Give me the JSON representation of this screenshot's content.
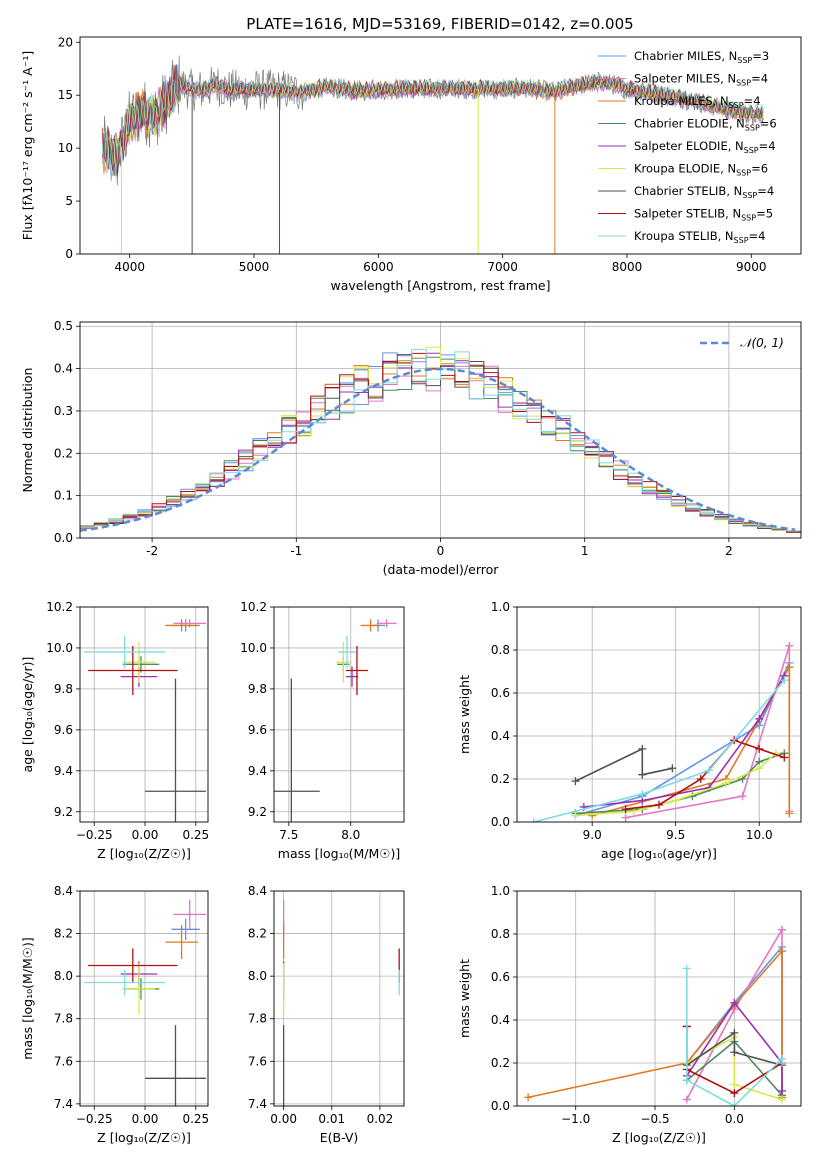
{
  "figure_title": "PLATE=1616, MJD=53169, FIBERID=0142, z=0.005",
  "models": [
    {
      "name": "Chabrier MILES",
      "nssp": "3",
      "color": "#6495ed"
    },
    {
      "name": "Salpeter MILES",
      "nssp": "4",
      "color": "#e377c2"
    },
    {
      "name": "Kroupa MILES",
      "nssp": "4",
      "color": "#e07a1f"
    },
    {
      "name": "Chabrier ELODIE",
      "nssp": "6",
      "color": "#4c8c5c"
    },
    {
      "name": "Salpeter ELODIE",
      "nssp": "4",
      "color": "#9b30b0"
    },
    {
      "name": "Kroupa ELODIE",
      "nssp": "6",
      "color": "#d8e84a"
    },
    {
      "name": "Chabrier STELIB",
      "nssp": "4",
      "color": "#505050"
    },
    {
      "name": "Salpeter STELIB",
      "nssp": "5",
      "color": "#b01010"
    },
    {
      "name": "Kroupa STELIB",
      "nssp": "4",
      "color": "#7fdbe0"
    }
  ],
  "chart_data": [
    {
      "id": "spectrum",
      "type": "line",
      "xlabel": "wavelength [Angstrom, rest frame]",
      "ylabel": "Flux [fλ10⁻¹⁷ erg cm⁻² s⁻¹ A⁻¹]",
      "xlim": [
        3600,
        9400
      ],
      "ylim": [
        0,
        20.5
      ],
      "xticks": [
        4000,
        5000,
        6000,
        7000,
        8000,
        9000
      ],
      "yticks": [
        0,
        5,
        10,
        15,
        20
      ],
      "grid": false,
      "legend": "right",
      "continuum": {
        "x": [
          3780,
          3900,
          4000,
          4100,
          4200,
          4300,
          4400,
          4500,
          4600,
          4700,
          4800,
          4900,
          5000,
          5200,
          5400,
          5600,
          5800,
          6000,
          6200,
          6400,
          6600,
          6800,
          7000,
          7200,
          7400,
          7600,
          7800,
          8000,
          8200,
          8400,
          8600,
          8800,
          9000,
          9100
        ],
        "y": [
          10.0,
          9.0,
          12.5,
          13.5,
          13.0,
          14.5,
          16.0,
          15.5,
          15.5,
          16.0,
          15.5,
          15.5,
          15.5,
          15.5,
          15.3,
          15.8,
          15.4,
          15.5,
          15.6,
          15.6,
          15.6,
          15.6,
          15.6,
          15.7,
          15.3,
          15.9,
          16.3,
          15.6,
          15.2,
          14.8,
          14.3,
          13.6,
          13.2,
          13.3
        ]
      },
      "absorption_lines": [
        {
          "x": 3933,
          "y": 0,
          "model": "Kroupa ELODIE"
        },
        {
          "x": 4502,
          "y": 0,
          "model": "Chabrier STELIB"
        },
        {
          "x": 5205,
          "y": 0,
          "model": "Chabrier STELIB"
        },
        {
          "x": 6803,
          "y": 0,
          "model": "Kroupa ELODIE"
        },
        {
          "x": 7420,
          "y": 0,
          "model": "Kroupa MILES"
        }
      ]
    },
    {
      "id": "residual-histogram",
      "type": "histogram",
      "xlabel": "(data-model)/error",
      "ylabel": "Normed distribution",
      "xlim": [
        -2.5,
        2.5
      ],
      "ylim": [
        0,
        0.51
      ],
      "xticks": [
        -2,
        -1,
        0,
        1,
        2
      ],
      "yticks": [
        0.0,
        0.1,
        0.2,
        0.3,
        0.4,
        0.5
      ],
      "grid": true,
      "legend": "top-right",
      "reference_curve": {
        "name": "𝒩(0, 1)",
        "mean": 0,
        "sd": 1,
        "color": "#5a8ad6"
      },
      "bin_width": 0.1
    },
    {
      "id": "age-vs-Z",
      "type": "errorbar",
      "xlabel": "Z [log₁₀(Z/Z☉)]",
      "ylabel": "age [log₁₀(age/yr)]",
      "xlim": [
        -0.32,
        0.31
      ],
      "ylim": [
        9.15,
        10.2
      ],
      "xticks": [
        -0.25,
        0.0,
        0.25
      ],
      "xticklabels": [
        "−0.25",
        "0.00",
        "0.25"
      ],
      "yticks": [
        9.2,
        9.4,
        9.6,
        9.8,
        10.0,
        10.2
      ],
      "grid": true,
      "points": [
        {
          "model": "Chabrier MILES",
          "x": 0.2,
          "xerr": 0.07,
          "y": 10.11,
          "yerr": 0.03
        },
        {
          "model": "Salpeter MILES",
          "x": 0.22,
          "xerr": 0.08,
          "y": 10.12,
          "yerr": 0.02
        },
        {
          "model": "Kroupa MILES",
          "x": 0.18,
          "xerr": 0.08,
          "y": 10.11,
          "yerr": 0.03
        },
        {
          "model": "Chabrier ELODIE",
          "x": -0.02,
          "xerr": 0.09,
          "y": 9.92,
          "yerr": 0.04
        },
        {
          "model": "Salpeter ELODIE",
          "x": -0.03,
          "xerr": 0.09,
          "y": 9.86,
          "yerr": 0.05
        },
        {
          "model": "Kroupa ELODIE",
          "x": -0.03,
          "xerr": 0.08,
          "y": 9.93,
          "yerr": 0.1
        },
        {
          "model": "Chabrier STELIB",
          "x": 0.15,
          "xerr": 0.15,
          "y": 9.3,
          "yerr": 0.55
        },
        {
          "model": "Salpeter STELIB",
          "x": -0.06,
          "xerr": 0.22,
          "y": 9.89,
          "yerr": 0.12
        },
        {
          "model": "Kroupa STELIB",
          "x": -0.1,
          "xerr": 0.2,
          "y": 9.98,
          "yerr": 0.08
        }
      ]
    },
    {
      "id": "age-vs-mass",
      "type": "errorbar",
      "xlabel": "mass [log₁₀(M/M☉)]",
      "xlim": [
        7.38,
        8.43
      ],
      "ylim": [
        9.15,
        10.2
      ],
      "xticks": [
        7.5,
        8.0
      ],
      "xticklabels": [
        "7.5",
        "8.0"
      ],
      "yticks": [
        9.2,
        9.4,
        9.6,
        9.8,
        10.0,
        10.2
      ],
      "grid": true,
      "points": [
        {
          "model": "Chabrier MILES",
          "x": 8.22,
          "xerr": 0.06,
          "y": 10.11,
          "yerr": 0.03
        },
        {
          "model": "Salpeter MILES",
          "x": 8.29,
          "xerr": 0.08,
          "y": 10.12,
          "yerr": 0.02
        },
        {
          "model": "Kroupa MILES",
          "x": 8.16,
          "xerr": 0.08,
          "y": 10.11,
          "yerr": 0.03
        },
        {
          "model": "Chabrier ELODIE",
          "x": 7.94,
          "xerr": 0.05,
          "y": 9.92,
          "yerr": 0.04
        },
        {
          "model": "Salpeter ELODIE",
          "x": 8.01,
          "xerr": 0.05,
          "y": 9.86,
          "yerr": 0.05
        },
        {
          "model": "Kroupa ELODIE",
          "x": 7.94,
          "xerr": 0.06,
          "y": 9.93,
          "yerr": 0.1
        },
        {
          "model": "Chabrier STELIB",
          "x": 7.52,
          "xerr": 0.23,
          "y": 9.3,
          "yerr": 0.55
        },
        {
          "model": "Salpeter STELIB",
          "x": 8.05,
          "xerr": 0.09,
          "y": 9.89,
          "yerr": 0.12
        },
        {
          "model": "Kroupa STELIB",
          "x": 7.97,
          "xerr": 0.07,
          "y": 9.98,
          "yerr": 0.08
        }
      ]
    },
    {
      "id": "mass-weight-vs-age",
      "type": "line",
      "xlabel": "age [log₁₀(age/yr)]",
      "ylabel": "mass weight",
      "xlim": [
        8.55,
        10.25
      ],
      "ylim": [
        0.0,
        1.0
      ],
      "xticks": [
        9.0,
        9.5,
        10.0
      ],
      "xticklabels": [
        "9.0",
        "9.5",
        "10.0"
      ],
      "yticks": [
        0.0,
        0.2,
        0.4,
        0.6,
        0.8,
        1.0
      ],
      "grid": true,
      "series": [
        {
          "model": "Chabrier MILES",
          "x": [
            8.9,
            9.3,
            10.0,
            10.18
          ],
          "y": [
            0.03,
            0.12,
            0.45,
            0.74
          ]
        },
        {
          "model": "Salpeter MILES",
          "x": [
            9.2,
            9.9,
            10.18,
            10.18
          ],
          "y": [
            0.02,
            0.12,
            0.82,
            0.05
          ]
        },
        {
          "model": "Kroupa MILES",
          "x": [
            9.0,
            9.8,
            10.18,
            10.18
          ],
          "y": [
            0.03,
            0.2,
            0.72,
            0.04
          ]
        },
        {
          "model": "Chabrier ELODIE",
          "x": [
            8.9,
            9.3,
            9.6,
            9.9,
            10.0,
            10.15
          ],
          "y": [
            0.04,
            0.06,
            0.12,
            0.2,
            0.28,
            0.32
          ]
        },
        {
          "model": "Salpeter ELODIE",
          "x": [
            8.95,
            9.3,
            9.7,
            10.0,
            10.15
          ],
          "y": [
            0.07,
            0.1,
            0.16,
            0.48,
            0.68
          ]
        },
        {
          "model": "Kroupa ELODIE",
          "x": [
            8.9,
            9.25,
            9.5,
            9.8,
            10.0,
            10.1
          ],
          "y": [
            0.03,
            0.05,
            0.1,
            0.18,
            0.25,
            0.32
          ]
        },
        {
          "model": "Chabrier STELIB",
          "x": [
            8.9,
            9.3,
            9.3,
            9.48
          ],
          "y": [
            0.19,
            0.34,
            0.22,
            0.25
          ]
        },
        {
          "model": "Salpeter STELIB",
          "x": [
            9.2,
            9.4,
            9.65,
            9.85,
            10.0,
            10.15
          ],
          "y": [
            0.06,
            0.08,
            0.2,
            0.38,
            0.34,
            0.3
          ]
        },
        {
          "model": "Kroupa STELIB",
          "x": [
            8.65,
            9.3,
            9.7,
            10.15
          ],
          "y": [
            0.0,
            0.13,
            0.24,
            0.66
          ]
        }
      ]
    },
    {
      "id": "mass-vs-Z",
      "type": "errorbar",
      "xlabel": "Z [log₁₀(Z/Z☉)]",
      "ylabel": "mass [log₁₀(M/M☉)]",
      "xlim": [
        -0.32,
        0.31
      ],
      "ylim": [
        7.39,
        8.4
      ],
      "xticks": [
        -0.25,
        0.0,
        0.25
      ],
      "xticklabels": [
        "−0.25",
        "0.00",
        "0.25"
      ],
      "yticks": [
        7.4,
        7.6,
        7.8,
        8.0,
        8.2,
        8.4
      ],
      "grid": true,
      "points": [
        {
          "model": "Chabrier MILES",
          "x": 0.2,
          "xerr": 0.07,
          "y": 8.22,
          "yerr": 0.05
        },
        {
          "model": "Salpeter MILES",
          "x": 0.22,
          "xerr": 0.08,
          "y": 8.29,
          "yerr": 0.07
        },
        {
          "model": "Kroupa MILES",
          "x": 0.18,
          "xerr": 0.08,
          "y": 8.16,
          "yerr": 0.08
        },
        {
          "model": "Chabrier ELODIE",
          "x": -0.02,
          "xerr": 0.09,
          "y": 7.94,
          "yerr": 0.05
        },
        {
          "model": "Salpeter ELODIE",
          "x": -0.03,
          "xerr": 0.09,
          "y": 8.01,
          "yerr": 0.06
        },
        {
          "model": "Kroupa ELODIE",
          "x": -0.03,
          "xerr": 0.08,
          "y": 7.94,
          "yerr": 0.12
        },
        {
          "model": "Chabrier STELIB",
          "x": 0.15,
          "xerr": 0.15,
          "y": 7.52,
          "yerr": 0.25
        },
        {
          "model": "Salpeter STELIB",
          "x": -0.06,
          "xerr": 0.22,
          "y": 8.05,
          "yerr": 0.08
        },
        {
          "model": "Kroupa STELIB",
          "x": -0.1,
          "xerr": 0.2,
          "y": 7.97,
          "yerr": 0.06
        }
      ]
    },
    {
      "id": "mass-vs-ebv",
      "type": "errorbar",
      "xlabel": "E(B-V)",
      "xlim": [
        -0.002,
        0.025
      ],
      "ylim": [
        7.39,
        8.4
      ],
      "xticks": [
        0.0,
        0.01,
        0.02
      ],
      "xticklabels": [
        "0.00",
        "0.01",
        "0.02"
      ],
      "yticks": [
        7.4,
        7.6,
        7.8,
        8.0,
        8.2,
        8.4
      ],
      "grid": true,
      "points": [
        {
          "model": "Chabrier MILES",
          "x": 0.0,
          "xerr": 0,
          "y": 8.22,
          "yerr": 0.05
        },
        {
          "model": "Salpeter MILES",
          "x": 0.0,
          "xerr": 0,
          "y": 8.29,
          "yerr": 0.07
        },
        {
          "model": "Kroupa MILES",
          "x": 0.0,
          "xerr": 0,
          "y": 8.16,
          "yerr": 0.08
        },
        {
          "model": "Chabrier ELODIE",
          "x": 0.0,
          "xerr": 0,
          "y": 7.94,
          "yerr": 0.05
        },
        {
          "model": "Salpeter ELODIE",
          "x": 0.0,
          "xerr": 0,
          "y": 8.01,
          "yerr": 0.06
        },
        {
          "model": "Kroupa ELODIE",
          "x": 0.0,
          "xerr": 0,
          "y": 7.94,
          "yerr": 0.12
        },
        {
          "model": "Chabrier STELIB",
          "x": 0.0,
          "xerr": 0,
          "y": 7.52,
          "yerr": 0.25
        },
        {
          "model": "Salpeter STELIB",
          "x": 0.024,
          "xerr": 0,
          "y": 8.05,
          "yerr": 0.08
        },
        {
          "model": "Kroupa STELIB",
          "x": 0.024,
          "xerr": 0,
          "y": 7.97,
          "yerr": 0.06
        }
      ]
    },
    {
      "id": "mass-weight-vs-Z",
      "type": "line",
      "xlabel": "Z [log₁₀(Z/Z☉)]",
      "ylabel": "mass weight",
      "xlim": [
        -1.37,
        0.42
      ],
      "ylim": [
        0.0,
        1.0
      ],
      "xticks": [
        -1.0,
        -0.5,
        0.0
      ],
      "xticklabels": [
        "−1.0",
        "−0.5",
        "0.0"
      ],
      "yticks": [
        0.0,
        0.2,
        0.4,
        0.6,
        0.8,
        1.0
      ],
      "grid": true,
      "series": [
        {
          "model": "Chabrier MILES",
          "x": [
            -0.3,
            0.0,
            0.3,
            0.3
          ],
          "y": [
            0.2,
            0.48,
            0.74,
            0.05
          ]
        },
        {
          "model": "Salpeter MILES",
          "x": [
            -0.3,
            0.0,
            0.3,
            0.3
          ],
          "y": [
            0.03,
            0.45,
            0.82,
            0.05
          ]
        },
        {
          "model": "Kroupa MILES",
          "x": [
            -1.3,
            -0.3,
            0.0,
            0.3,
            0.3
          ],
          "y": [
            0.04,
            0.2,
            0.47,
            0.72,
            0.04
          ]
        },
        {
          "model": "Chabrier ELODIE",
          "x": [
            -0.3,
            0.0,
            0.3
          ],
          "y": [
            0.12,
            0.3,
            0.05
          ]
        },
        {
          "model": "Salpeter ELODIE",
          "x": [
            -0.3,
            0.0,
            0.3,
            0.3
          ],
          "y": [
            0.14,
            0.48,
            0.2,
            0.07
          ]
        },
        {
          "model": "Kroupa ELODIE",
          "x": [
            -0.3,
            0.0,
            0.0,
            0.3
          ],
          "y": [
            0.2,
            0.32,
            0.1,
            0.03
          ]
        },
        {
          "model": "Chabrier STELIB",
          "x": [
            -0.3,
            -0.3,
            0.0,
            0.0,
            0.3
          ],
          "y": [
            0.37,
            0.19,
            0.34,
            0.25,
            0.19
          ]
        },
        {
          "model": "Salpeter STELIB",
          "x": [
            -0.3,
            -0.3,
            0.0,
            0.3
          ],
          "y": [
            0.37,
            0.17,
            0.06,
            0.2
          ]
        },
        {
          "model": "Kroupa STELIB",
          "x": [
            -0.3,
            -0.3,
            0.0,
            0.3,
            0.3
          ],
          "y": [
            0.64,
            0.12,
            0.0,
            0.22,
            0.2
          ]
        }
      ]
    }
  ]
}
